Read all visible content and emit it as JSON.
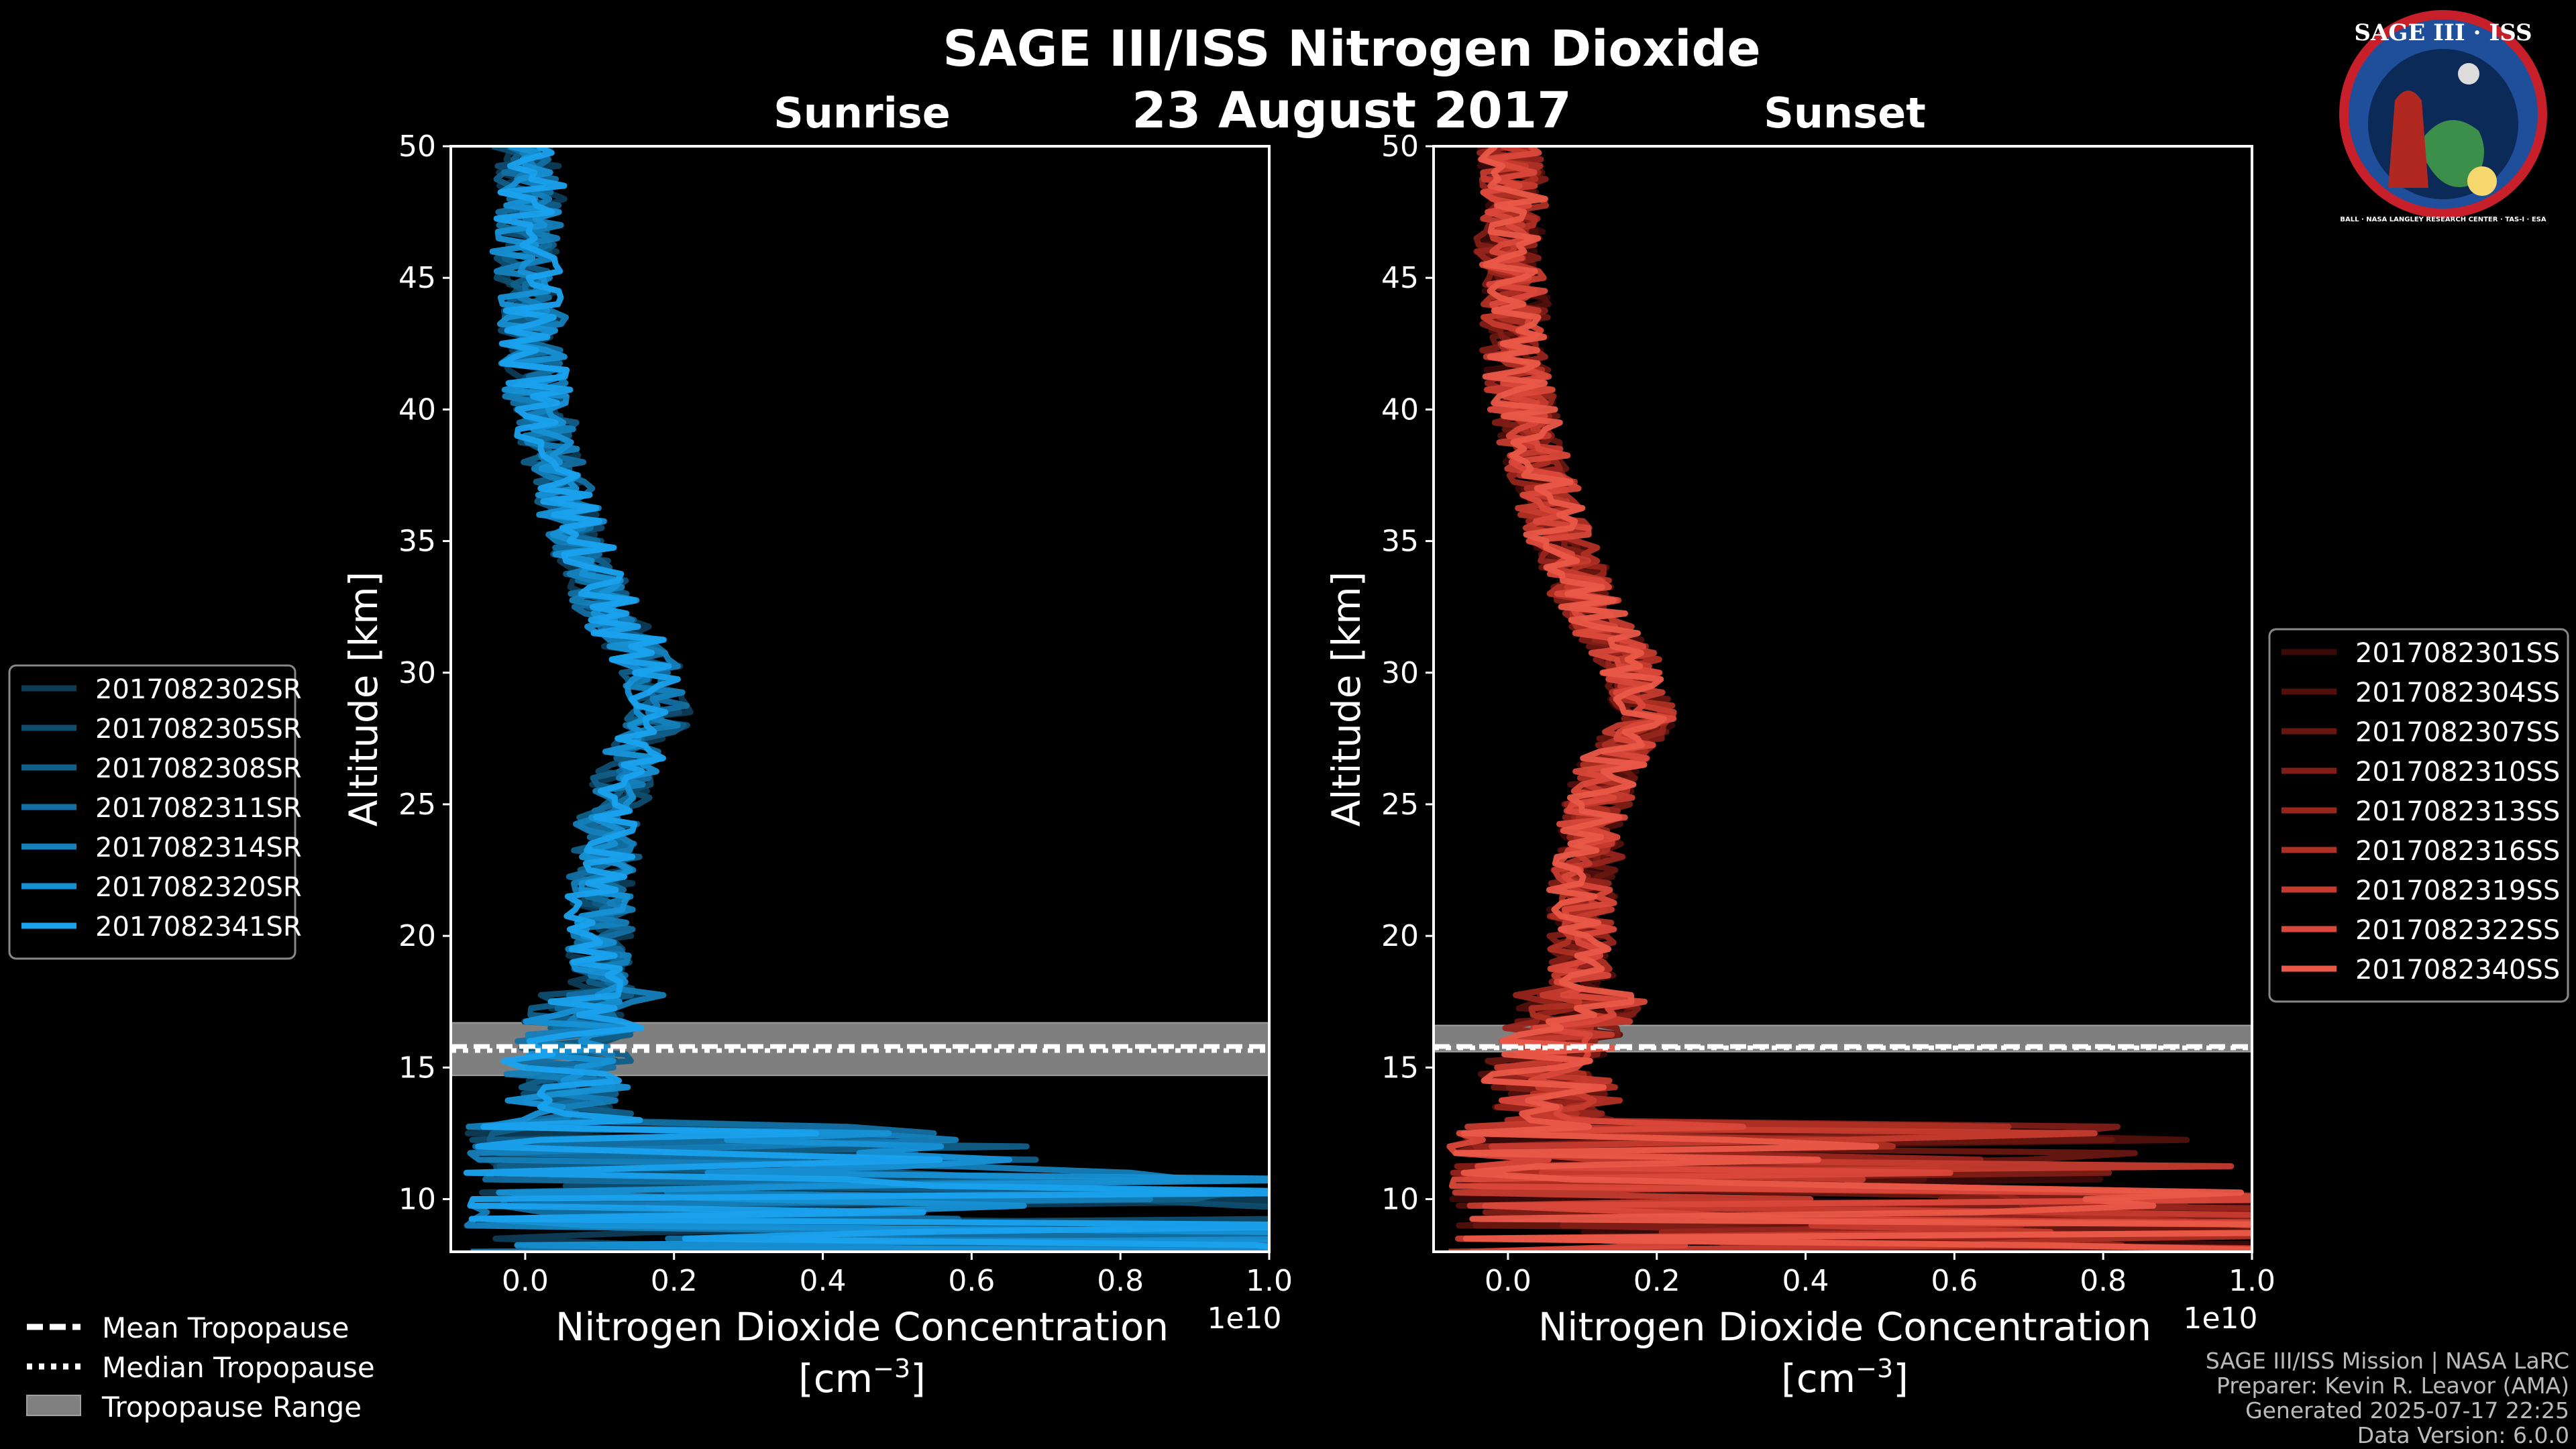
{
  "chart_data": {
    "type": "line",
    "title": "SAGE III/ISS Nitrogen Dioxide",
    "date": "23 August 2017",
    "ylabel": "Altitude [km]",
    "xlabel_line1": "Nitrogen Dioxide Concentration",
    "xlabel_line2": "[cm",
    "xlabel_sup": "−3",
    "xlabel_close": "]",
    "x_multiplier": "1e10",
    "xlim": [
      -0.1,
      1.0
    ],
    "ylim": [
      8,
      50
    ],
    "x_ticks": [
      "0.0",
      "0.2",
      "0.4",
      "0.6",
      "0.8",
      "1.0"
    ],
    "y_ticks": [
      "10",
      "15",
      "20",
      "25",
      "30",
      "35",
      "40",
      "45",
      "50"
    ],
    "logo": {
      "title": "SAGE III · ISS",
      "ring": "BALL · NASA LANGLEY RESEARCH CENTER · TAS-I · ESA"
    },
    "panels": [
      {
        "subtitle": "Sunrise",
        "base_color": "#1a9ee0",
        "mean_tropopause": 15.8,
        "median_tropopause": 15.8,
        "tropopause_range": [
          14.7,
          16.7
        ],
        "series": [
          {
            "name": "2017082302SR",
            "color": "#0d3c55",
            "seed": 11
          },
          {
            "name": "2017082305SR",
            "color": "#0f4d6f",
            "seed": 23
          },
          {
            "name": "2017082308SR",
            "color": "#115e88",
            "seed": 37
          },
          {
            "name": "2017082311SR",
            "color": "#136fa2",
            "seed": 41
          },
          {
            "name": "2017082314SR",
            "color": "#1580bb",
            "seed": 53
          },
          {
            "name": "2017082320SR",
            "color": "#1791d5",
            "seed": 67
          },
          {
            "name": "2017082341SR",
            "color": "#1aa2ee",
            "seed": 79
          }
        ]
      },
      {
        "subtitle": "Sunset",
        "base_color": "#e85a4a",
        "mean_tropopause": 15.8,
        "median_tropopause": 15.9,
        "tropopause_range": [
          15.6,
          16.6
        ],
        "series": [
          {
            "name": "2017082301SS",
            "color": "#3a0a08",
            "seed": 13
          },
          {
            "name": "2017082304SS",
            "color": "#51100c",
            "seed": 29
          },
          {
            "name": "2017082307SS",
            "color": "#681610",
            "seed": 31
          },
          {
            "name": "2017082310SS",
            "color": "#7f1d16",
            "seed": 43
          },
          {
            "name": "2017082313SS",
            "color": "#97251c",
            "seed": 59
          },
          {
            "name": "2017082316SS",
            "color": "#ae2f24",
            "seed": 61
          },
          {
            "name": "2017082319SS",
            "color": "#c53b2e",
            "seed": 71
          },
          {
            "name": "2017082322SS",
            "color": "#d9483a",
            "seed": 83
          },
          {
            "name": "2017082340SS",
            "color": "#ea5848",
            "seed": 97
          }
        ]
      }
    ],
    "profile_mean": [
      [
        8,
        0.55
      ],
      [
        9,
        0.45
      ],
      [
        10,
        0.35
      ],
      [
        11,
        0.18
      ],
      [
        12,
        0.12
      ],
      [
        13,
        0.08
      ],
      [
        14,
        0.06
      ],
      [
        15,
        0.05
      ],
      [
        16,
        0.06
      ],
      [
        17,
        0.09
      ],
      [
        18,
        0.1
      ],
      [
        19,
        0.1
      ],
      [
        20,
        0.1
      ],
      [
        21,
        0.1
      ],
      [
        22,
        0.1
      ],
      [
        23,
        0.11
      ],
      [
        24,
        0.11
      ],
      [
        25,
        0.12
      ],
      [
        26,
        0.13
      ],
      [
        27,
        0.15
      ],
      [
        28,
        0.18
      ],
      [
        29,
        0.18
      ],
      [
        30,
        0.17
      ],
      [
        31,
        0.15
      ],
      [
        32,
        0.12
      ],
      [
        33,
        0.1
      ],
      [
        34,
        0.09
      ],
      [
        35,
        0.07
      ],
      [
        36,
        0.06
      ],
      [
        37,
        0.05
      ],
      [
        38,
        0.04
      ],
      [
        39,
        0.03
      ],
      [
        40,
        0.02
      ],
      [
        42,
        0.01
      ],
      [
        44,
        0.01
      ],
      [
        46,
        0.0
      ],
      [
        48,
        0.01
      ],
      [
        50,
        0.0
      ]
    ],
    "legend_tropopause": [
      {
        "label": "Mean Tropopause",
        "style": "dashed"
      },
      {
        "label": "Median Tropopause",
        "style": "dotted"
      },
      {
        "label": "Tropopause Range",
        "style": "patch"
      }
    ],
    "footer": [
      "SAGE III/ISS Mission | NASA LaRC",
      "Preparer: Kevin R. Leavor (AMA)",
      "Generated 2025-07-17 22:25",
      "Data Version: 6.0.0"
    ]
  }
}
